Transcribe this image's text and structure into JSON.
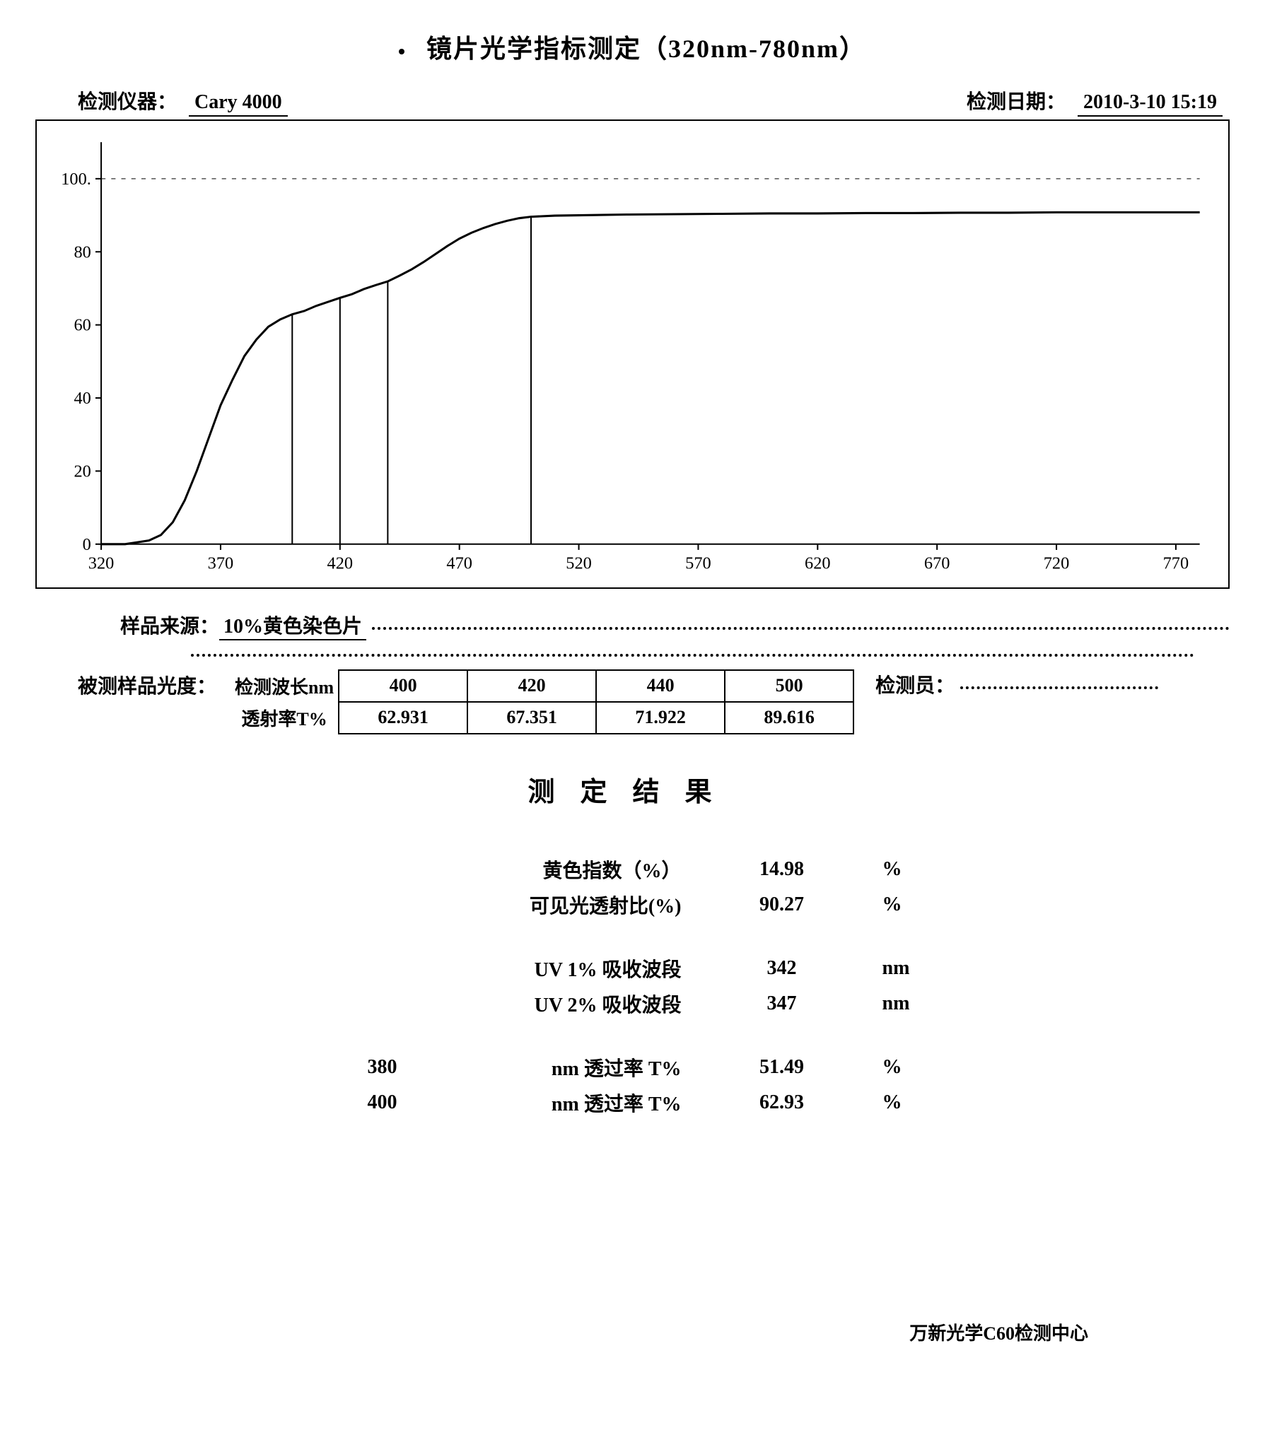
{
  "title": "镜片光学指标测定（320nm-780nm）",
  "meta": {
    "instrument_label": "检测仪器：",
    "instrument_value": "Cary 4000",
    "date_label": "检测日期：",
    "date_value": "2010-3-10 15:19"
  },
  "chart": {
    "type": "line",
    "xlim": [
      320,
      780
    ],
    "ylim": [
      0,
      110
    ],
    "xticks": [
      320,
      370,
      420,
      470,
      520,
      570,
      620,
      670,
      720,
      770
    ],
    "yticks": [
      0,
      20,
      40,
      60,
      80,
      100
    ],
    "tick_fontsize": 24,
    "axis_color": "#000000",
    "grid_color": "#000000",
    "line_color": "#000000",
    "line_width": 3,
    "vline_width": 2,
    "background_color": "#ffffff",
    "curve": [
      [
        320,
        0
      ],
      [
        330,
        0
      ],
      [
        335,
        0.5
      ],
      [
        340,
        1
      ],
      [
        345,
        2.5
      ],
      [
        350,
        6
      ],
      [
        355,
        12
      ],
      [
        360,
        20
      ],
      [
        365,
        29
      ],
      [
        370,
        38
      ],
      [
        375,
        45
      ],
      [
        380,
        51.5
      ],
      [
        385,
        56
      ],
      [
        390,
        59.5
      ],
      [
        395,
        61.5
      ],
      [
        400,
        62.9
      ],
      [
        405,
        63.8
      ],
      [
        410,
        65.2
      ],
      [
        415,
        66.3
      ],
      [
        420,
        67.4
      ],
      [
        425,
        68.4
      ],
      [
        430,
        69.8
      ],
      [
        435,
        70.9
      ],
      [
        440,
        71.9
      ],
      [
        445,
        73.5
      ],
      [
        450,
        75.2
      ],
      [
        455,
        77.2
      ],
      [
        460,
        79.4
      ],
      [
        465,
        81.6
      ],
      [
        470,
        83.6
      ],
      [
        475,
        85.2
      ],
      [
        480,
        86.5
      ],
      [
        485,
        87.6
      ],
      [
        490,
        88.5
      ],
      [
        495,
        89.2
      ],
      [
        500,
        89.6
      ],
      [
        510,
        89.9
      ],
      [
        520,
        90
      ],
      [
        540,
        90.2
      ],
      [
        560,
        90.3
      ],
      [
        580,
        90.4
      ],
      [
        600,
        90.5
      ],
      [
        620,
        90.5
      ],
      [
        640,
        90.6
      ],
      [
        660,
        90.6
      ],
      [
        680,
        90.7
      ],
      [
        700,
        90.7
      ],
      [
        720,
        90.8
      ],
      [
        740,
        90.8
      ],
      [
        760,
        90.8
      ],
      [
        780,
        90.8
      ]
    ],
    "vlines": [
      400,
      420,
      440,
      500
    ],
    "hgrid_y": 100,
    "hgrid_dash": "6 8"
  },
  "sample_source": {
    "label": "样品来源：",
    "value": "10%黄色染色片"
  },
  "sample_degree_label": "被测样品光度：",
  "inspector_label": "检测员：",
  "transmittance_table": {
    "row_headers": [
      "检测波长nm",
      "透射率T%"
    ],
    "cols": [
      "400",
      "420",
      "440",
      "500"
    ],
    "vals": [
      "62.931",
      "67.351",
      "71.922",
      "89.616"
    ]
  },
  "results_title": "测定结果",
  "results": [
    {
      "prefix": "",
      "label": "黄色指数（%）",
      "value": "14.98",
      "unit": "%"
    },
    {
      "prefix": "",
      "label": "可见光透射比(%)",
      "value": "90.27",
      "unit": "%"
    }
  ],
  "results2": [
    {
      "prefix": "",
      "label": "UV 1% 吸收波段",
      "value": "342",
      "unit": "nm"
    },
    {
      "prefix": "",
      "label": "UV 2% 吸收波段",
      "value": "347",
      "unit": "nm"
    }
  ],
  "results3": [
    {
      "prefix": "380",
      "label": "nm 透过率 T%",
      "value": "51.49",
      "unit": "%"
    },
    {
      "prefix": "400",
      "label": "nm 透过率 T%",
      "value": "62.93",
      "unit": "%"
    }
  ],
  "footer": "万新光学C60检测中心"
}
